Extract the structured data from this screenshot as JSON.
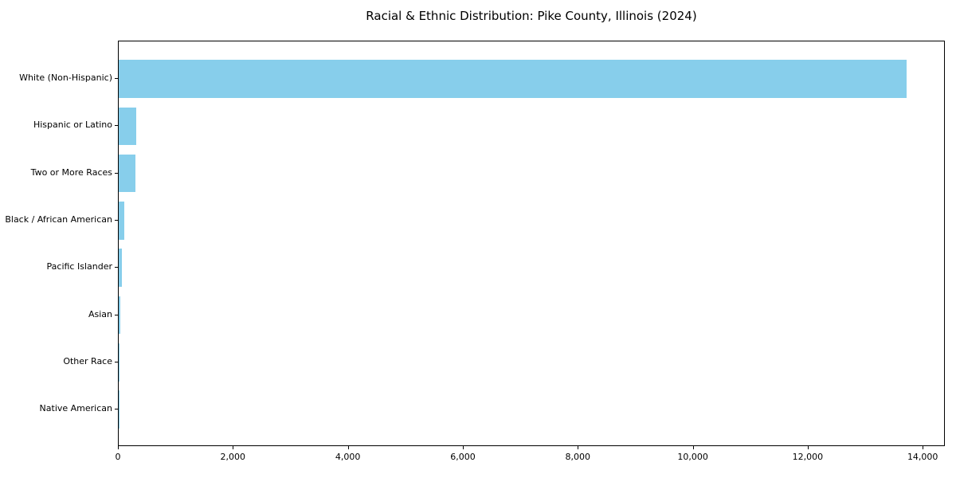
{
  "chart_data": {
    "type": "bar",
    "orientation": "horizontal",
    "title": "Racial & Ethnic Distribution: Pike County, Illinois (2024)",
    "categories": [
      "White (Non-Hispanic)",
      "Hispanic or Latino",
      "Two or More Races",
      "Black / African American",
      "Pacific Islander",
      "Asian",
      "Other Race",
      "Native American"
    ],
    "values": [
      13700,
      310,
      290,
      100,
      50,
      30,
      10,
      5
    ],
    "xlabel": "",
    "ylabel": "",
    "xlim": [
      0,
      14385
    ],
    "x_tick_values": [
      0,
      2000,
      4000,
      6000,
      8000,
      10000,
      12000,
      14000
    ],
    "x_tick_labels": [
      "0",
      "2,000",
      "4,000",
      "6,000",
      "8,000",
      "10,000",
      "12,000",
      "14,000"
    ],
    "bar_color": "#87CEEB",
    "axis_color": "#000000",
    "text_color": "#000000",
    "background_color": "#ffffff",
    "grid": false,
    "legend": "none"
  }
}
